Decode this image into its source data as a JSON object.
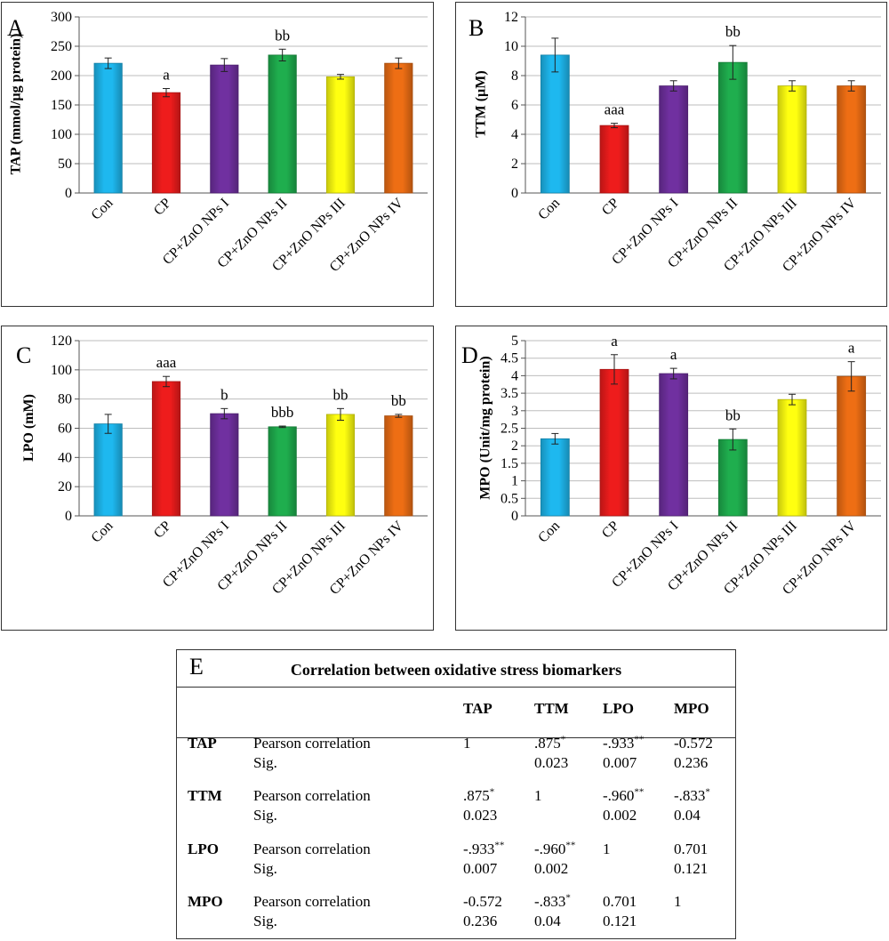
{
  "chart_data": [
    {
      "panel": "A",
      "type": "bar",
      "ylabel": "TAP (mmol/µg protein)",
      "ylim": [
        0,
        300
      ],
      "yticks": [
        0,
        50,
        100,
        150,
        200,
        250,
        300
      ],
      "categories": [
        "Con",
        "CP",
        "CP+ZnO NPs I",
        "CP+ZnO NPs II",
        "CP+ZnO NPs III",
        "CP+ZnO NPs IV"
      ],
      "values": [
        221,
        171,
        218,
        235,
        198,
        221
      ],
      "errors": [
        9,
        7,
        11,
        10,
        4,
        9
      ],
      "annotations": [
        "",
        "a",
        "",
        "bb",
        "",
        ""
      ],
      "colors": [
        "#1eb8ef",
        "#ee1c1c",
        "#7030a0",
        "#1fae4e",
        "#ffff10",
        "#ee6e14"
      ]
    },
    {
      "panel": "B",
      "type": "bar",
      "ylabel": "TTM (µM)",
      "ylim": [
        0,
        12
      ],
      "yticks": [
        0,
        2,
        4,
        6,
        8,
        10,
        12
      ],
      "categories": [
        "Con",
        "CP",
        "CP+ZnO NPs I",
        "CP+ZnO NPs II",
        "CP+ZnO NPs III",
        "CP+ZnO NPs IV"
      ],
      "values": [
        9.4,
        4.6,
        7.3,
        8.9,
        7.3,
        7.3
      ],
      "errors": [
        1.15,
        0.15,
        0.35,
        1.15,
        0.35,
        0.35
      ],
      "annotations": [
        "",
        "aaa",
        "",
        "bb",
        "",
        ""
      ],
      "colors": [
        "#1eb8ef",
        "#ee1c1c",
        "#7030a0",
        "#1fae4e",
        "#ffff10",
        "#ee6e14"
      ]
    },
    {
      "panel": "C",
      "type": "bar",
      "ylabel": "LPO (mM)",
      "ylim": [
        0,
        120
      ],
      "yticks": [
        0,
        20,
        40,
        60,
        80,
        100,
        120
      ],
      "categories": [
        "Con",
        "CP",
        "CP+ZnO NPs I",
        "CP+ZnO NPs II",
        "CP+ZnO NPs III",
        "CP+ZnO NPs IV"
      ],
      "values": [
        63,
        92,
        70,
        61,
        69.5,
        68.5
      ],
      "errors": [
        6.5,
        3.5,
        3.5,
        0.5,
        4,
        1
      ],
      "annotations": [
        "",
        "aaa",
        "b",
        "bbb",
        "bb",
        "bb"
      ],
      "colors": [
        "#1eb8ef",
        "#ee1c1c",
        "#7030a0",
        "#1fae4e",
        "#ffff10",
        "#ee6e14"
      ]
    },
    {
      "panel": "D",
      "type": "bar",
      "ylabel": "MPO (Unit/mg protein)",
      "ylim": [
        0,
        5
      ],
      "yticks": [
        0,
        0.5,
        1,
        1.5,
        2,
        2.5,
        3,
        3.5,
        4,
        4.5,
        5
      ],
      "categories": [
        "Con",
        "CP",
        "CP+ZnO NPs I",
        "CP+ZnO NPs II",
        "CP+ZnO NPs III",
        "CP+ZnO NPs IV"
      ],
      "values": [
        2.2,
        4.18,
        4.06,
        2.18,
        3.32,
        3.98
      ],
      "errors": [
        0.15,
        0.42,
        0.15,
        0.3,
        0.15,
        0.42
      ],
      "annotations": [
        "",
        "a",
        "a",
        "bb",
        "",
        "a"
      ],
      "colors": [
        "#1eb8ef",
        "#ee1c1c",
        "#7030a0",
        "#1fae4e",
        "#ffff10",
        "#ee6e14"
      ]
    },
    {
      "panel": "E",
      "type": "table",
      "title": "Correlation between oxidative stress biomarkers",
      "columns": [
        "TAP",
        "TTM",
        "LPO",
        "MPO"
      ],
      "row_labels": [
        "Pearson correlation",
        "Sig."
      ],
      "rows": [
        {
          "name": "TAP",
          "pearson": [
            {
              "v": "1",
              "s": ""
            },
            {
              "v": ".875",
              "s": "*"
            },
            {
              "v": "-.933",
              "s": "**"
            },
            {
              "v": "-0.572",
              "s": ""
            }
          ],
          "sig": [
            "",
            "0.023",
            "0.007",
            "0.236"
          ]
        },
        {
          "name": "TTM",
          "pearson": [
            {
              "v": ".875",
              "s": "*"
            },
            {
              "v": "1",
              "s": ""
            },
            {
              "v": "-.960",
              "s": "**"
            },
            {
              "v": "-.833",
              "s": "*"
            }
          ],
          "sig": [
            "0.023",
            "",
            "0.002",
            "0.04"
          ]
        },
        {
          "name": "LPO",
          "pearson": [
            {
              "v": "-.933",
              "s": "**"
            },
            {
              "v": "-.960",
              "s": "**"
            },
            {
              "v": "1",
              "s": ""
            },
            {
              "v": "0.701",
              "s": ""
            }
          ],
          "sig": [
            "0.007",
            "0.002",
            "",
            "0.121"
          ]
        },
        {
          "name": "MPO",
          "pearson": [
            {
              "v": "-0.572",
              "s": ""
            },
            {
              "v": "-.833",
              "s": "*"
            },
            {
              "v": "0.701",
              "s": ""
            },
            {
              "v": "1",
              "s": ""
            }
          ],
          "sig": [
            "0.236",
            "0.04",
            "0.121",
            ""
          ]
        }
      ]
    }
  ]
}
